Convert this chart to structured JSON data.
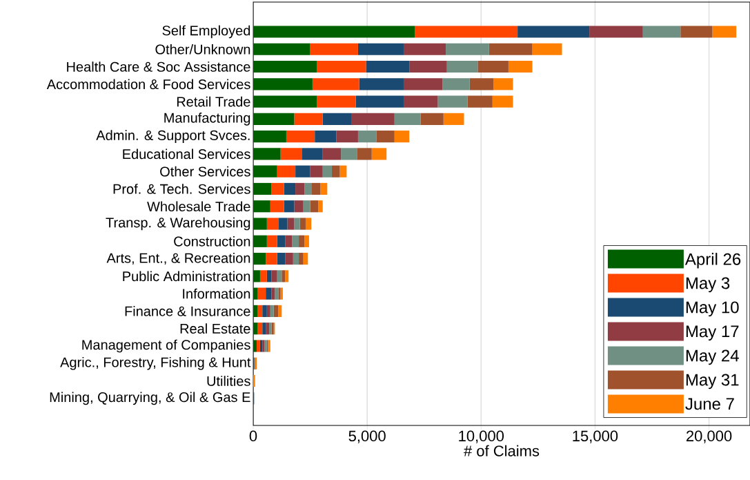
{
  "chart_data": {
    "type": "bar",
    "orientation": "horizontal",
    "stacked": true,
    "xlabel": "# of Claims",
    "categories": [
      "Self Employed",
      "Other/Unknown",
      "Health Care & Soc Assistance",
      "Accommodation & Food Services",
      "Retail Trade",
      "Manufacturing",
      "Admin. & Support Svces.",
      "Educational Services",
      "Other Services",
      "Prof. & Tech. Services",
      "Wholesale Trade",
      "Transp. & Warehousing",
      "Construction",
      "Arts, Ent., & Recreation",
      "Public Administration",
      "Information",
      "Finance & Insurance",
      "Real Estate",
      "Management of Companies",
      "Agric., Forestry, Fishing & Hunt",
      "Utilities",
      "Mining, Quarrying, & Oil & Gas E"
    ],
    "series": [
      {
        "name": "April 26",
        "color": "#006000",
        "values": [
          7100,
          2500,
          2800,
          2600,
          2800,
          1800,
          1450,
          1200,
          1050,
          800,
          750,
          600,
          600,
          550,
          300,
          200,
          200,
          200,
          150,
          null,
          null,
          null
        ]
      },
      {
        "name": "May 3",
        "color": "#ff4500",
        "values": [
          4500,
          2100,
          2150,
          2050,
          1700,
          1250,
          1250,
          950,
          800,
          550,
          600,
          500,
          450,
          500,
          300,
          350,
          200,
          200,
          150,
          null,
          null,
          null
        ]
      },
      {
        "name": "May 10",
        "color": "#1a4a72",
        "values": [
          3150,
          2000,
          1900,
          1950,
          2100,
          1250,
          950,
          900,
          650,
          500,
          450,
          400,
          350,
          350,
          200,
          250,
          200,
          150,
          100,
          50,
          null,
          40
        ]
      },
      {
        "name": "May 17",
        "color": "#903c42",
        "values": [
          2350,
          1850,
          1650,
          1700,
          1500,
          1900,
          950,
          800,
          550,
          400,
          400,
          300,
          300,
          350,
          250,
          150,
          150,
          150,
          100,
          null,
          null,
          null
        ]
      },
      {
        "name": "May 24",
        "color": "#6f9082",
        "values": [
          1650,
          1900,
          1350,
          1200,
          1300,
          1150,
          800,
          700,
          400,
          300,
          300,
          250,
          300,
          250,
          200,
          150,
          150,
          100,
          100,
          null,
          null,
          null
        ]
      },
      {
        "name": "May 31",
        "color": "#a0522d",
        "values": [
          1400,
          1900,
          1350,
          1050,
          1100,
          1000,
          800,
          650,
          350,
          400,
          350,
          250,
          250,
          200,
          150,
          100,
          200,
          100,
          50,
          null,
          null,
          null
        ]
      },
      {
        "name": "June 7",
        "color": "#ff8000",
        "values": [
          1050,
          1300,
          1050,
          850,
          900,
          900,
          650,
          650,
          300,
          300,
          200,
          250,
          200,
          200,
          150,
          100,
          150,
          50,
          100,
          110,
          80,
          null
        ]
      }
    ],
    "xlim": [
      0,
      21800
    ],
    "xticks": [
      0,
      {
        "value": 5000,
        "label": "5,000"
      },
      {
        "value": 10000,
        "label": "10,000"
      },
      {
        "value": 15000,
        "label": "15,000"
      },
      {
        "value": 20000,
        "label": "20,000"
      }
    ],
    "grid": "x",
    "legend": "bottom right"
  }
}
